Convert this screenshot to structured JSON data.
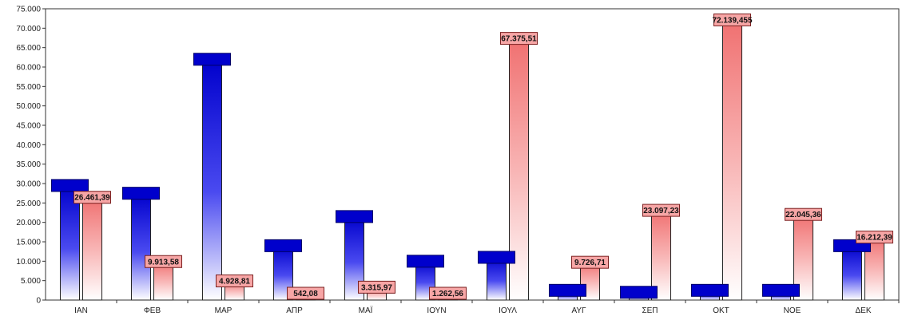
{
  "chart_data": {
    "type": "bar",
    "title": "",
    "xlabel": "",
    "ylabel": "",
    "ylim": [
      0,
      75000
    ],
    "yticks": [
      0,
      5000,
      10000,
      15000,
      20000,
      25000,
      30000,
      35000,
      40000,
      45000,
      50000,
      55000,
      60000,
      65000,
      70000,
      75000
    ],
    "ytick_labels": [
      "0",
      "5.000",
      "10.000",
      "15.000",
      "20.000",
      "25.000",
      "30.000",
      "35.000",
      "40.000",
      "45.000",
      "50.000",
      "55.000",
      "60.000",
      "65.000",
      "70.000",
      "75.000"
    ],
    "categories": [
      "ΙΑΝ",
      "ΦΕΒ",
      "ΜΑΡ",
      "ΑΠΡ",
      "ΜΑΪ",
      "ΙΟΥΝ",
      "ΙΟΥΛ",
      "ΑΥΓ",
      "ΣΕΠ",
      "ΟΚΤ",
      "ΝΟΕ",
      "ΔΕΚ"
    ],
    "grid": false,
    "series": [
      {
        "color": "#0000cc",
        "values": [
          29500,
          27500,
          62000,
          14000,
          21500,
          10000,
          11000,
          2500,
          2000,
          2500,
          2500,
          14000
        ],
        "labels": [
          "",
          "",
          "",
          "",
          "",
          "",
          "",
          "",
          "",
          "",
          "",
          ""
        ]
      },
      {
        "color": "#f07070",
        "values": [
          26461.39,
          9913.58,
          4928.81,
          542.08,
          3315.97,
          1262.56,
          67375.51,
          9726.71,
          23097.23,
          72139.455,
          22045.36,
          16212.39
        ],
        "labels": [
          "26.461,39",
          "9.913,58",
          "4.928,81",
          "542,08",
          "3.315,97",
          "1.262,56",
          "67.375,51",
          "9.726,71",
          "23.097,23",
          "72.139,455",
          "22.045,36",
          "16.212,39"
        ]
      }
    ]
  }
}
